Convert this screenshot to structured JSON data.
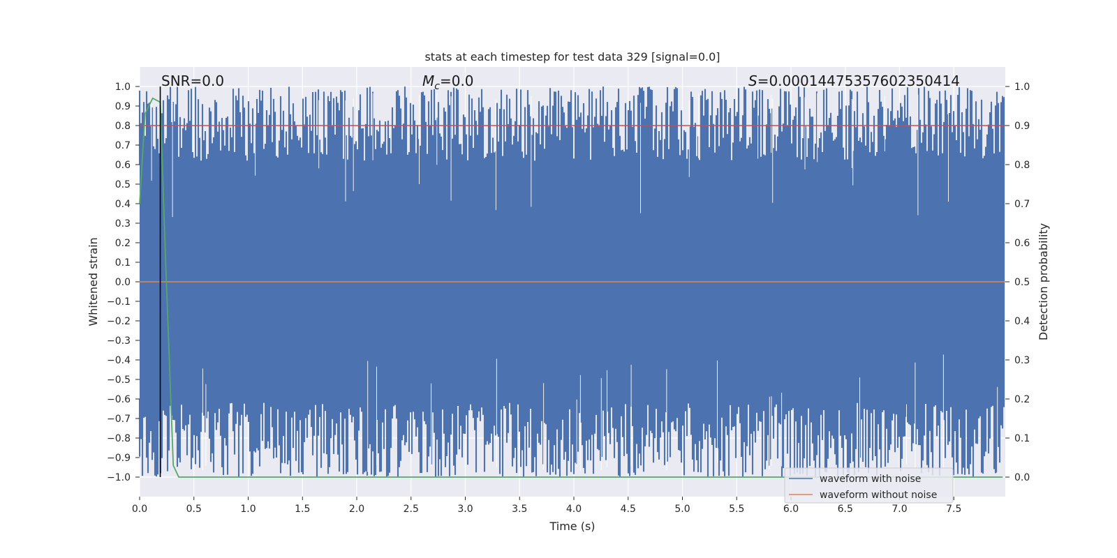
{
  "chart_data": {
    "type": "line",
    "title": "stats at each timestep for test data 329 [signal=0.0]",
    "xlabel": "Time (s)",
    "ylabel_left": "Whitened strain",
    "ylabel_right": "Detection probability",
    "xlim": [
      0.0,
      8.0
    ],
    "ylim_left": [
      -1.1,
      1.1
    ],
    "ylim_right": [
      -0.05,
      1.05
    ],
    "x_ticks": [
      "0.0",
      "0.5",
      "1.0",
      "1.5",
      "2.0",
      "2.5",
      "3.0",
      "3.5",
      "4.0",
      "4.5",
      "5.0",
      "5.5",
      "6.0",
      "6.5",
      "7.0",
      "7.5"
    ],
    "y_left_ticks": [
      "1.0",
      "0.9",
      "0.8",
      "0.7",
      "0.6",
      "0.5",
      "0.4",
      "0.3",
      "0.2",
      "0.1",
      "0.0",
      "−0.1",
      "−0.2",
      "−0.3",
      "−0.4",
      "−0.5",
      "−0.6",
      "−0.7",
      "−0.8",
      "−0.9",
      "−1.0"
    ],
    "y_right_ticks": [
      "1.0",
      "0.9",
      "0.8",
      "0.7",
      "0.6",
      "0.5",
      "0.4",
      "0.3",
      "0.2",
      "0.1",
      "0.0"
    ],
    "grid": true,
    "legend_placement": "lower-right",
    "annotations": {
      "snr": "SNR=0.0",
      "mc_symbol": "M",
      "mc_sub": "c",
      "mc_value": "=0.0",
      "s_symbol": "S",
      "s_value": "=0.00014475357602350414"
    },
    "marker_line_x": 0.19,
    "series": [
      {
        "name": "waveform with noise",
        "color": "#4c72b0",
        "axis": "left",
        "description_values": "dense noise filling approx [-1.0, 1.0]"
      },
      {
        "name": "waveform without noise",
        "color": "#dd8452",
        "axis": "left",
        "values_constant": 0.0
      },
      {
        "axis": "right",
        "color": "#55a868",
        "x": [
          0.0,
          0.05,
          0.12,
          0.19,
          0.24,
          0.31,
          0.36,
          0.45,
          1.0,
          2.0,
          3.0,
          4.0,
          5.0,
          6.0,
          7.0,
          7.95
        ],
        "y": [
          0.7,
          0.93,
          0.97,
          0.96,
          0.55,
          0.03,
          0.0,
          0.0,
          0.0,
          0.0,
          0.0,
          0.0,
          0.0,
          0.0,
          0.0,
          0.0
        ]
      },
      {
        "axis": "right",
        "color": "#c44e52",
        "values_constant": 0.9
      }
    ]
  }
}
